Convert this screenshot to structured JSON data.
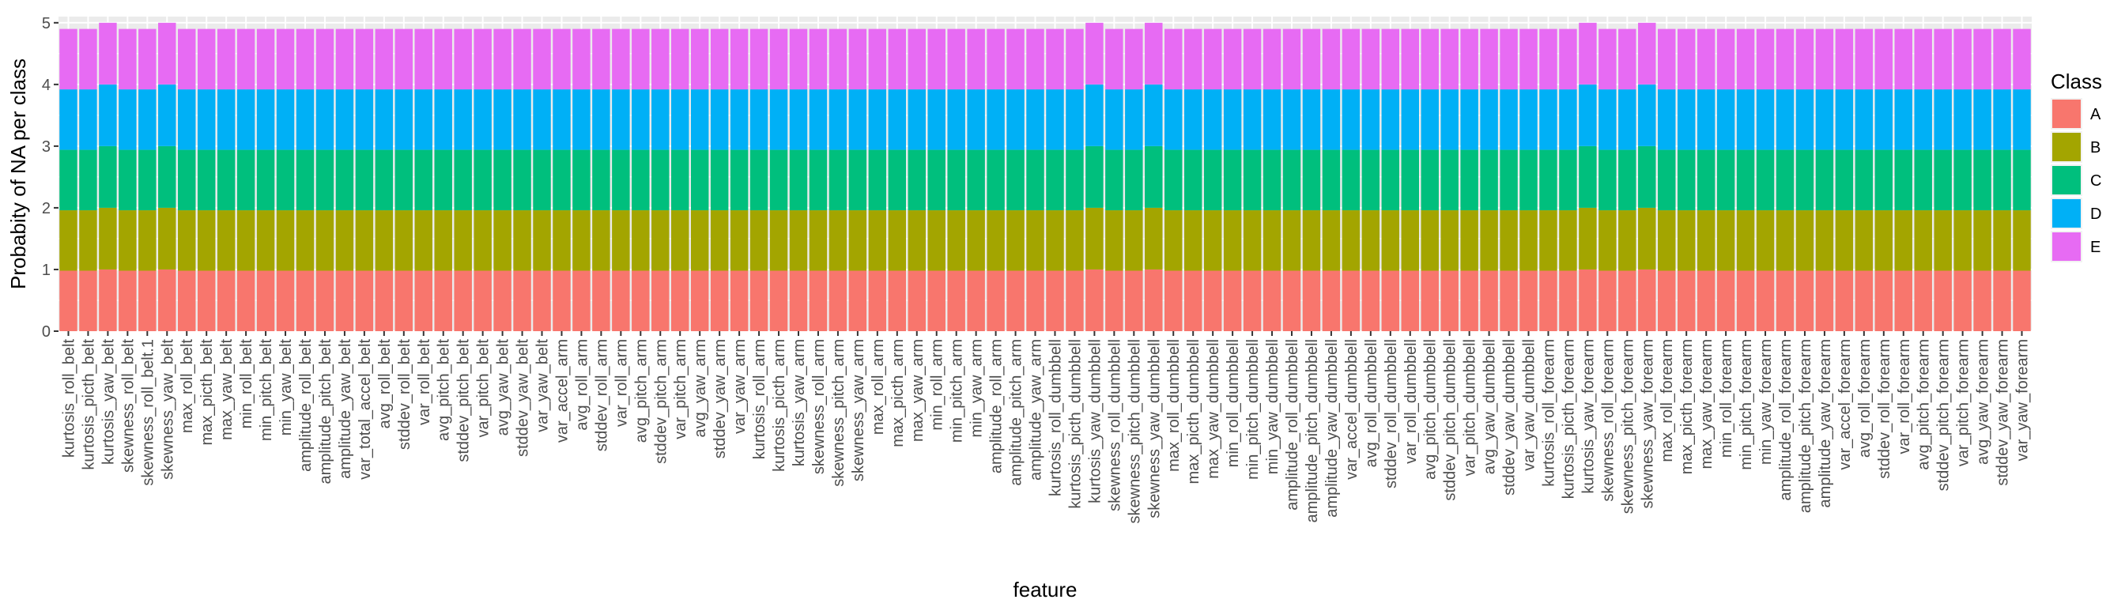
{
  "chart_data": {
    "type": "bar",
    "stacked": true,
    "xlabel": "feature",
    "ylabel": "Probabity of NA per class",
    "ylim": [
      0,
      5.1
    ],
    "yticks": [
      0,
      1,
      2,
      3,
      4,
      5
    ],
    "yticklabels": [
      "0",
      "1",
      "2",
      "3",
      "4",
      "5"
    ],
    "grid": true,
    "legend": {
      "title": "Class",
      "position": "right"
    },
    "categories": [
      "kurtosis_roll_belt",
      "kurtosis_picth_belt",
      "kurtosis_yaw_belt",
      "skewness_roll_belt",
      "skewness_roll_belt.1",
      "skewness_yaw_belt",
      "max_roll_belt",
      "max_picth_belt",
      "max_yaw_belt",
      "min_roll_belt",
      "min_pitch_belt",
      "min_yaw_belt",
      "amplitude_roll_belt",
      "amplitude_pitch_belt",
      "amplitude_yaw_belt",
      "var_total_accel_belt",
      "avg_roll_belt",
      "stddev_roll_belt",
      "var_roll_belt",
      "avg_pitch_belt",
      "stddev_pitch_belt",
      "var_pitch_belt",
      "avg_yaw_belt",
      "stddev_yaw_belt",
      "var_yaw_belt",
      "var_accel_arm",
      "avg_roll_arm",
      "stddev_roll_arm",
      "var_roll_arm",
      "avg_pitch_arm",
      "stddev_pitch_arm",
      "var_pitch_arm",
      "avg_yaw_arm",
      "stddev_yaw_arm",
      "var_yaw_arm",
      "kurtosis_roll_arm",
      "kurtosis_picth_arm",
      "kurtosis_yaw_arm",
      "skewness_roll_arm",
      "skewness_pitch_arm",
      "skewness_yaw_arm",
      "max_roll_arm",
      "max_picth_arm",
      "max_yaw_arm",
      "min_roll_arm",
      "min_pitch_arm",
      "min_yaw_arm",
      "amplitude_roll_arm",
      "amplitude_pitch_arm",
      "amplitude_yaw_arm",
      "kurtosis_roll_dumbbell",
      "kurtosis_picth_dumbbell",
      "kurtosis_yaw_dumbbell",
      "skewness_roll_dumbbell",
      "skewness_pitch_dumbbell",
      "skewness_yaw_dumbbell",
      "max_roll_dumbbell",
      "max_picth_dumbbell",
      "max_yaw_dumbbell",
      "min_roll_dumbbell",
      "min_pitch_dumbbell",
      "min_yaw_dumbbell",
      "amplitude_roll_dumbbell",
      "amplitude_pitch_dumbbell",
      "amplitude_yaw_dumbbell",
      "var_accel_dumbbell",
      "avg_roll_dumbbell",
      "stddev_roll_dumbbell",
      "var_roll_dumbbell",
      "avg_pitch_dumbbell",
      "stddev_pitch_dumbbell",
      "var_pitch_dumbbell",
      "avg_yaw_dumbbell",
      "stddev_yaw_dumbbell",
      "var_yaw_dumbbell",
      "kurtosis_roll_forearm",
      "kurtosis_picth_forearm",
      "kurtosis_yaw_forearm",
      "skewness_roll_forearm",
      "skewness_pitch_forearm",
      "skewness_yaw_forearm",
      "max_roll_forearm",
      "max_picth_forearm",
      "max_yaw_forearm",
      "min_roll_forearm",
      "min_pitch_forearm",
      "min_yaw_forearm",
      "amplitude_roll_forearm",
      "amplitude_pitch_forearm",
      "amplitude_yaw_forearm",
      "var_accel_forearm",
      "avg_roll_forearm",
      "stddev_roll_forearm",
      "var_roll_forearm",
      "avg_pitch_forearm",
      "stddev_pitch_forearm",
      "var_pitch_forearm",
      "avg_yaw_forearm",
      "stddev_yaw_forearm",
      "var_yaw_forearm"
    ],
    "series": [
      {
        "name": "A",
        "color": "#F8766D",
        "values": [
          0.98,
          0.98,
          1.0,
          0.98,
          0.98,
          1.0,
          0.98,
          0.98,
          0.98,
          0.98,
          0.98,
          0.98,
          0.98,
          0.98,
          0.98,
          0.98,
          0.98,
          0.98,
          0.98,
          0.98,
          0.98,
          0.98,
          0.98,
          0.98,
          0.98,
          0.98,
          0.98,
          0.98,
          0.98,
          0.98,
          0.98,
          0.98,
          0.98,
          0.98,
          0.98,
          0.98,
          0.98,
          0.98,
          0.98,
          0.98,
          0.98,
          0.98,
          0.98,
          0.98,
          0.98,
          0.98,
          0.98,
          0.98,
          0.98,
          0.98,
          0.98,
          0.98,
          1.0,
          0.98,
          0.98,
          1.0,
          0.98,
          0.98,
          0.98,
          0.98,
          0.98,
          0.98,
          0.98,
          0.98,
          0.98,
          0.98,
          0.98,
          0.98,
          0.98,
          0.98,
          0.98,
          0.98,
          0.98,
          0.98,
          0.98,
          0.98,
          0.98,
          1.0,
          0.98,
          0.98,
          1.0,
          0.98,
          0.98,
          0.98,
          0.98,
          0.98,
          0.98,
          0.98,
          0.98,
          0.98,
          0.98,
          0.98,
          0.98,
          0.98,
          0.98,
          0.98,
          0.98,
          0.98,
          0.98,
          0.98
        ]
      },
      {
        "name": "B",
        "color": "#A3A500",
        "values": [
          0.98,
          0.98,
          1.0,
          0.98,
          0.98,
          1.0,
          0.98,
          0.98,
          0.98,
          0.98,
          0.98,
          0.98,
          0.98,
          0.98,
          0.98,
          0.98,
          0.98,
          0.98,
          0.98,
          0.98,
          0.98,
          0.98,
          0.98,
          0.98,
          0.98,
          0.98,
          0.98,
          0.98,
          0.98,
          0.98,
          0.98,
          0.98,
          0.98,
          0.98,
          0.98,
          0.98,
          0.98,
          0.98,
          0.98,
          0.98,
          0.98,
          0.98,
          0.98,
          0.98,
          0.98,
          0.98,
          0.98,
          0.98,
          0.98,
          0.98,
          0.98,
          0.98,
          1.0,
          0.98,
          0.98,
          1.0,
          0.98,
          0.98,
          0.98,
          0.98,
          0.98,
          0.98,
          0.98,
          0.98,
          0.98,
          0.98,
          0.98,
          0.98,
          0.98,
          0.98,
          0.98,
          0.98,
          0.98,
          0.98,
          0.98,
          0.98,
          0.98,
          1.0,
          0.98,
          0.98,
          1.0,
          0.98,
          0.98,
          0.98,
          0.98,
          0.98,
          0.98,
          0.98,
          0.98,
          0.98,
          0.98,
          0.98,
          0.98,
          0.98,
          0.98,
          0.98,
          0.98,
          0.98,
          0.98,
          0.98
        ]
      },
      {
        "name": "C",
        "color": "#00BF7D",
        "values": [
          0.98,
          0.98,
          1.0,
          0.98,
          0.98,
          1.0,
          0.98,
          0.98,
          0.98,
          0.98,
          0.98,
          0.98,
          0.98,
          0.98,
          0.98,
          0.98,
          0.98,
          0.98,
          0.98,
          0.98,
          0.98,
          0.98,
          0.98,
          0.98,
          0.98,
          0.98,
          0.98,
          0.98,
          0.98,
          0.98,
          0.98,
          0.98,
          0.98,
          0.98,
          0.98,
          0.98,
          0.98,
          0.98,
          0.98,
          0.98,
          0.98,
          0.98,
          0.98,
          0.98,
          0.98,
          0.98,
          0.98,
          0.98,
          0.98,
          0.98,
          0.98,
          0.98,
          1.0,
          0.98,
          0.98,
          1.0,
          0.98,
          0.98,
          0.98,
          0.98,
          0.98,
          0.98,
          0.98,
          0.98,
          0.98,
          0.98,
          0.98,
          0.98,
          0.98,
          0.98,
          0.98,
          0.98,
          0.98,
          0.98,
          0.98,
          0.98,
          0.98,
          1.0,
          0.98,
          0.98,
          1.0,
          0.98,
          0.98,
          0.98,
          0.98,
          0.98,
          0.98,
          0.98,
          0.98,
          0.98,
          0.98,
          0.98,
          0.98,
          0.98,
          0.98,
          0.98,
          0.98,
          0.98,
          0.98,
          0.98
        ]
      },
      {
        "name": "D",
        "color": "#00B0F6",
        "values": [
          0.98,
          0.98,
          1.0,
          0.98,
          0.98,
          1.0,
          0.98,
          0.98,
          0.98,
          0.98,
          0.98,
          0.98,
          0.98,
          0.98,
          0.98,
          0.98,
          0.98,
          0.98,
          0.98,
          0.98,
          0.98,
          0.98,
          0.98,
          0.98,
          0.98,
          0.98,
          0.98,
          0.98,
          0.98,
          0.98,
          0.98,
          0.98,
          0.98,
          0.98,
          0.98,
          0.98,
          0.98,
          0.98,
          0.98,
          0.98,
          0.98,
          0.98,
          0.98,
          0.98,
          0.98,
          0.98,
          0.98,
          0.98,
          0.98,
          0.98,
          0.98,
          0.98,
          1.0,
          0.98,
          0.98,
          1.0,
          0.98,
          0.98,
          0.98,
          0.98,
          0.98,
          0.98,
          0.98,
          0.98,
          0.98,
          0.98,
          0.98,
          0.98,
          0.98,
          0.98,
          0.98,
          0.98,
          0.98,
          0.98,
          0.98,
          0.98,
          0.98,
          1.0,
          0.98,
          0.98,
          1.0,
          0.98,
          0.98,
          0.98,
          0.98,
          0.98,
          0.98,
          0.98,
          0.98,
          0.98,
          0.98,
          0.98,
          0.98,
          0.98,
          0.98,
          0.98,
          0.98,
          0.98,
          0.98,
          0.98
        ]
      },
      {
        "name": "E",
        "color": "#E76BF3",
        "values": [
          0.98,
          0.98,
          1.0,
          0.98,
          0.98,
          1.0,
          0.98,
          0.98,
          0.98,
          0.98,
          0.98,
          0.98,
          0.98,
          0.98,
          0.98,
          0.98,
          0.98,
          0.98,
          0.98,
          0.98,
          0.98,
          0.98,
          0.98,
          0.98,
          0.98,
          0.98,
          0.98,
          0.98,
          0.98,
          0.98,
          0.98,
          0.98,
          0.98,
          0.98,
          0.98,
          0.98,
          0.98,
          0.98,
          0.98,
          0.98,
          0.98,
          0.98,
          0.98,
          0.98,
          0.98,
          0.98,
          0.98,
          0.98,
          0.98,
          0.98,
          0.98,
          0.98,
          1.0,
          0.98,
          0.98,
          1.0,
          0.98,
          0.98,
          0.98,
          0.98,
          0.98,
          0.98,
          0.98,
          0.98,
          0.98,
          0.98,
          0.98,
          0.98,
          0.98,
          0.98,
          0.98,
          0.98,
          0.98,
          0.98,
          0.98,
          0.98,
          0.98,
          1.0,
          0.98,
          0.98,
          1.0,
          0.98,
          0.98,
          0.98,
          0.98,
          0.98,
          0.98,
          0.98,
          0.98,
          0.98,
          0.98,
          0.98,
          0.98,
          0.98,
          0.98,
          0.98,
          0.98,
          0.98,
          0.98,
          0.98
        ]
      }
    ]
  }
}
